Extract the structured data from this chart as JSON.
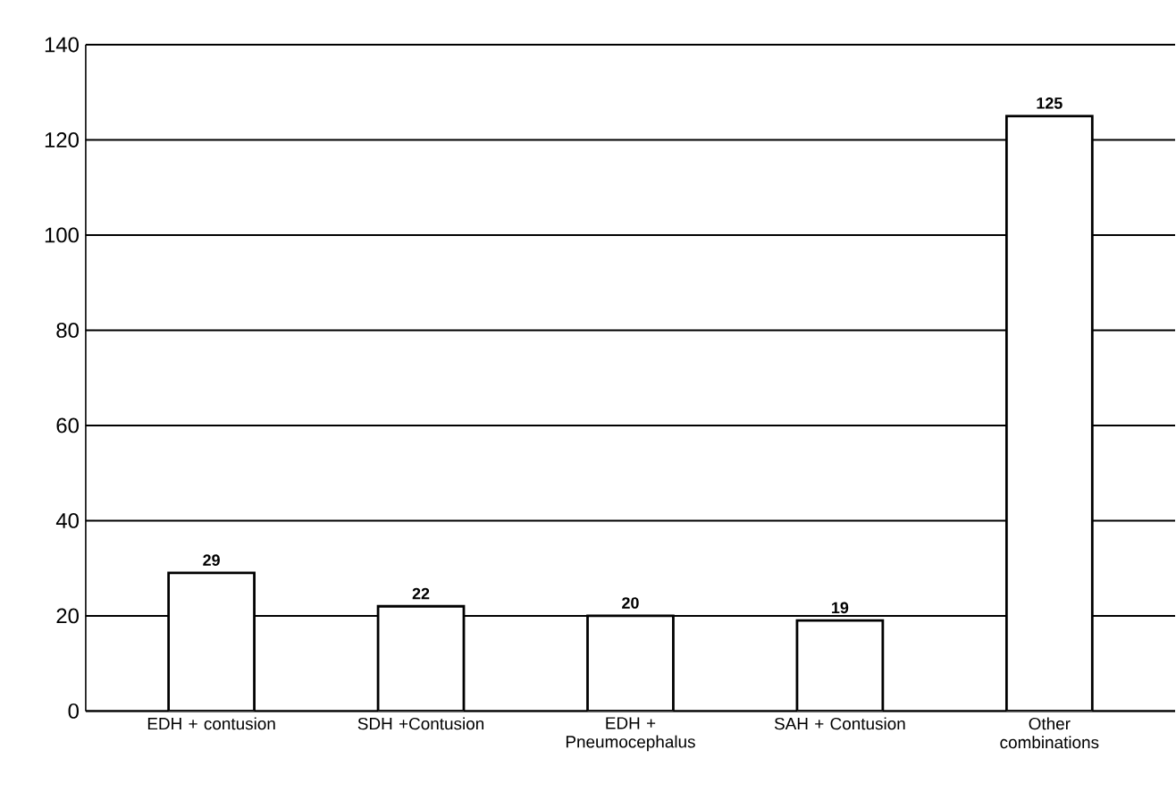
{
  "chart_data": {
    "type": "bar",
    "categories": [
      "EDH + contusion",
      "SDH +Contusion",
      "EDH + Pneumocephalus",
      "SAH + Contusion",
      "Other combinations"
    ],
    "values": [
      29,
      22,
      20,
      19,
      125
    ],
    "color": "#ffffff",
    "ylim": [
      0,
      140
    ],
    "yticks": [
      0,
      20,
      40,
      60,
      80,
      100,
      120,
      140
    ],
    "grid": "y",
    "data_labels": true
  }
}
